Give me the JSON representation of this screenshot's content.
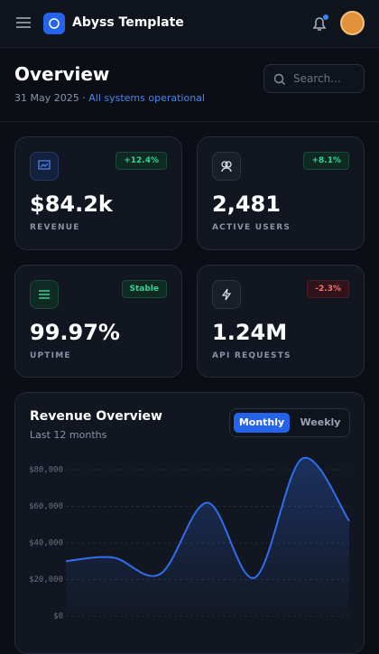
{
  "header": {
    "title": "Abyss Template"
  },
  "overview": {
    "title": "Overview",
    "date": "31 May 2025",
    "status": "All systems operational",
    "search_placeholder": "Search..."
  },
  "stats": [
    {
      "value": "$84.2k",
      "label": "REVENUE",
      "change": "+12.4%"
    },
    {
      "value": "2,481",
      "label": "ACTIVE USERS",
      "change": "+8.1%"
    },
    {
      "value": "99.97%",
      "label": "UPTIME",
      "change": "Stable"
    },
    {
      "value": "1.24M",
      "label": "API REQUESTS",
      "change": "-2.3%"
    }
  ],
  "chart_data": {
    "type": "line",
    "title": "Revenue Overview",
    "subtitle": "Last 12 months",
    "tabs": [
      "Monthly",
      "Weekly"
    ],
    "categories": [
      null,
      null,
      null,
      null,
      null,
      null,
      null
    ],
    "series": [
      {
        "name": "Revenue",
        "color": "#2f6fed",
        "values": [
          30000,
          32000,
          23000,
          62000,
          21000,
          86000,
          52000
        ]
      }
    ],
    "ylim": [
      0,
      90000
    ],
    "yticks": [
      {
        "value": 0,
        "label": "$0"
      },
      {
        "value": 20000,
        "label": "$20,000"
      },
      {
        "value": 40000,
        "label": "$40,000"
      },
      {
        "value": 60000,
        "label": "$60,000"
      },
      {
        "value": 80000,
        "label": "$80,000"
      }
    ],
    "grid": true
  }
}
